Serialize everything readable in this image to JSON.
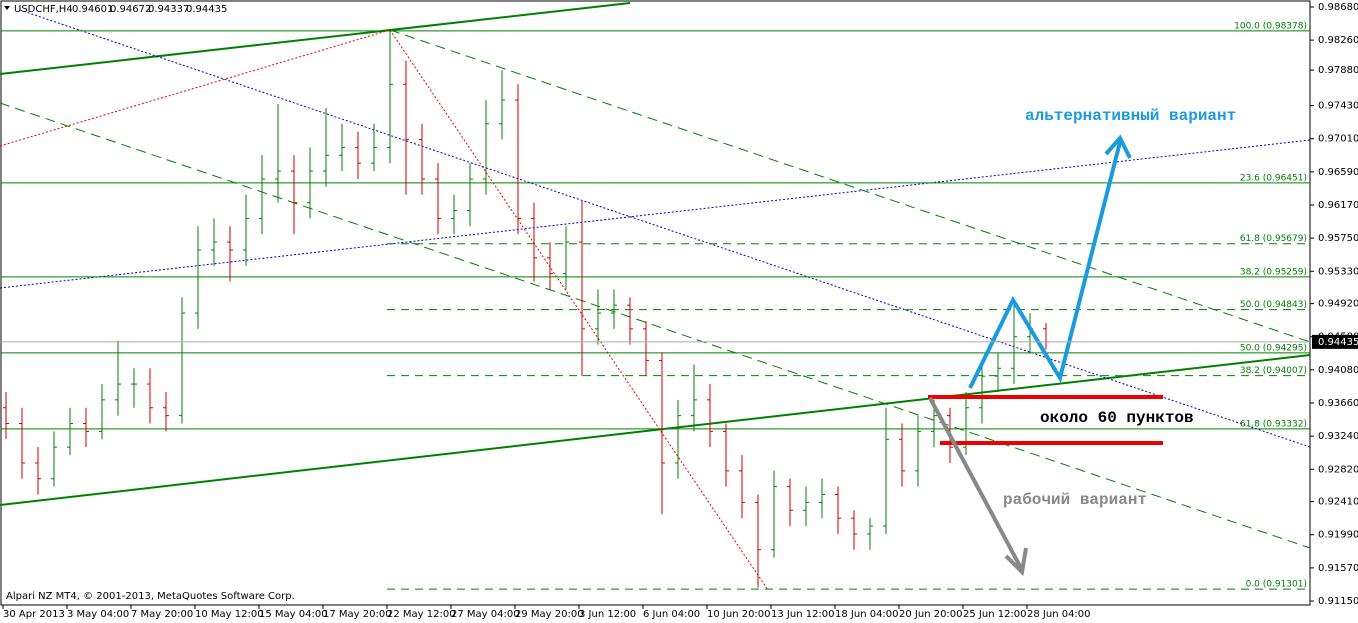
{
  "chart_data": {
    "type": "ohlc",
    "header": {
      "symbol": "USDCHF,H4",
      "values": [
        0.94601,
        0.94672,
        0.94337,
        0.94435
      ]
    },
    "copyright": "Alpari NZ MT4, © 2001-2013, MetaQuotes Software Corp.",
    "categories": [
      "30 Apr 2013",
      "3 May 04:00",
      "7 May 20:00",
      "10 May 12:00",
      "15 May 04:00",
      "17 May 20:00",
      "22 May 12:00",
      "27 May 04:00",
      "29 May 20:00",
      "3 Jun 12:00",
      "6 Jun 04:00",
      "10 Jun 20:00",
      "13 Jun 12:00",
      "18 Jun 04:00",
      "20 Jun 20:00",
      "25 Jun 12:00",
      "28 Jun 04:00"
    ],
    "up_color": "#008000",
    "down_color": "#cc0000",
    "open": [
      0.936,
      0.934,
      0.929,
      0.927,
      0.931,
      0.934,
      0.933,
      0.937,
      0.939,
      0.939,
      0.936,
      0.935,
      0.948,
      0.956,
      0.957,
      0.956,
      0.96,
      0.965,
      0.966,
      0.962,
      0.966,
      0.968,
      0.969,
      0.967,
      0.969,
      0.977,
      0.97,
      0.965,
      0.96,
      0.961,
      0.965,
      0.972,
      0.975,
      0.96,
      0.955,
      0.953,
      0.957,
      0.946,
      0.948,
      0.949,
      0.946,
      0.942,
      0.929,
      0.935,
      0.937,
      0.933,
      0.928,
      0.924,
      0.918,
      0.926,
      0.923,
      0.924,
      0.925,
      0.922,
      0.92,
      0.921,
      0.932,
      0.928,
      0.933,
      0.935,
      0.931,
      0.936,
      0.94,
      0.941,
      0.945,
      0.94601
    ],
    "high": [
      0.938,
      0.936,
      0.931,
      0.933,
      0.936,
      0.936,
      0.939,
      0.9445,
      0.941,
      0.941,
      0.938,
      0.95,
      0.959,
      0.96,
      0.959,
      0.963,
      0.968,
      0.9745,
      0.968,
      0.969,
      0.974,
      0.972,
      0.971,
      0.972,
      0.9838,
      0.98,
      0.972,
      0.967,
      0.963,
      0.967,
      0.975,
      0.9788,
      0.977,
      0.962,
      0.957,
      0.959,
      0.9622,
      0.951,
      0.951,
      0.95,
      0.947,
      0.943,
      0.937,
      0.9415,
      0.939,
      0.934,
      0.93,
      0.925,
      0.928,
      0.927,
      0.926,
      0.927,
      0.926,
      0.923,
      0.922,
      0.936,
      0.934,
      0.935,
      0.937,
      0.936,
      0.938,
      0.942,
      0.943,
      0.949,
      0.948,
      0.94672
    ],
    "low": [
      0.932,
      0.927,
      0.925,
      0.926,
      0.93,
      0.931,
      0.932,
      0.935,
      0.936,
      0.934,
      0.933,
      0.934,
      0.946,
      0.954,
      0.952,
      0.954,
      0.958,
      0.962,
      0.958,
      0.96,
      0.964,
      0.966,
      0.965,
      0.966,
      0.967,
      0.963,
      0.963,
      0.958,
      0.958,
      0.959,
      0.963,
      0.97,
      0.958,
      0.952,
      0.951,
      0.951,
      0.94,
      0.944,
      0.946,
      0.944,
      0.94,
      0.9225,
      0.927,
      0.933,
      0.931,
      0.926,
      0.922,
      0.9132,
      0.917,
      0.921,
      0.921,
      0.922,
      0.92,
      0.918,
      0.918,
      0.92,
      0.926,
      0.926,
      0.931,
      0.929,
      0.93,
      0.934,
      0.938,
      0.939,
      0.943,
      0.94337
    ],
    "close": [
      0.934,
      0.929,
      0.927,
      0.931,
      0.934,
      0.933,
      0.937,
      0.939,
      0.939,
      0.936,
      0.935,
      0.948,
      0.956,
      0.957,
      0.956,
      0.96,
      0.965,
      0.966,
      0.962,
      0.966,
      0.968,
      0.969,
      0.967,
      0.969,
      0.977,
      0.97,
      0.965,
      0.96,
      0.961,
      0.965,
      0.972,
      0.975,
      0.96,
      0.955,
      0.953,
      0.957,
      0.946,
      0.948,
      0.949,
      0.946,
      0.942,
      0.929,
      0.935,
      0.937,
      0.933,
      0.928,
      0.924,
      0.918,
      0.926,
      0.923,
      0.924,
      0.925,
      0.922,
      0.92,
      0.921,
      0.932,
      0.928,
      0.933,
      0.935,
      0.931,
      0.936,
      0.94,
      0.941,
      0.945,
      0.946,
      0.94435
    ],
    "ylim": [
      0.9115,
      0.9868
    ],
    "yticks": [
      {
        "value": 0.9868,
        "label": "0.98680"
      },
      {
        "value": 0.9826,
        "label": "0.98260"
      },
      {
        "value": 0.9788,
        "label": "0.97880"
      },
      {
        "value": 0.9743,
        "label": "0.97430"
      },
      {
        "value": 0.9701,
        "label": "0.97010"
      },
      {
        "value": 0.9659,
        "label": "0.96590"
      },
      {
        "value": 0.9617,
        "label": "0.96170"
      },
      {
        "value": 0.9575,
        "label": "0.95750"
      },
      {
        "value": 0.9533,
        "label": "0.95330"
      },
      {
        "value": 0.9492,
        "label": "0.94920"
      },
      {
        "value": 0.945,
        "label": "0.94500"
      },
      {
        "value": 0.9408,
        "label": "0.94080"
      },
      {
        "value": 0.9366,
        "label": "0.93660"
      },
      {
        "value": 0.9324,
        "label": "0.93240"
      },
      {
        "value": 0.9282,
        "label": "0.92820"
      },
      {
        "value": 0.9241,
        "label": "0.92410"
      },
      {
        "value": 0.9199,
        "label": "0.91990"
      },
      {
        "value": 0.9157,
        "label": "0.91570"
      },
      {
        "value": 0.9115,
        "label": "0.91150"
      }
    ],
    "fib_color": "#008000",
    "fibs": [
      {
        "style": "solid",
        "levels": [
          {
            "label": "100.0 (0.98378)",
            "value": 0.98378
          },
          {
            "label": "23.6 (0.96451)",
            "value": 0.96451
          },
          {
            "label": "38.2 (0.95259)",
            "value": 0.95259
          },
          {
            "label": "50.0 (0.94295)",
            "value": 0.94295
          },
          {
            "label": "61.8 (0.93332)",
            "value": 0.93332
          }
        ]
      },
      {
        "style": "dashed",
        "levels": [
          {
            "label": "61.8 (0.95679)",
            "value": 0.95679
          },
          {
            "label": "50.0 (0.94843)",
            "value": 0.94843
          },
          {
            "label": "38.2 (0.94007)",
            "value": 0.94007
          },
          {
            "label": "0.0 (0.91301)",
            "value": 0.91301
          }
        ]
      }
    ],
    "annotations": {
      "alternative": "альтернативный вариант",
      "range": "около 60 пунктов",
      "working": "рабочий вариант"
    }
  }
}
